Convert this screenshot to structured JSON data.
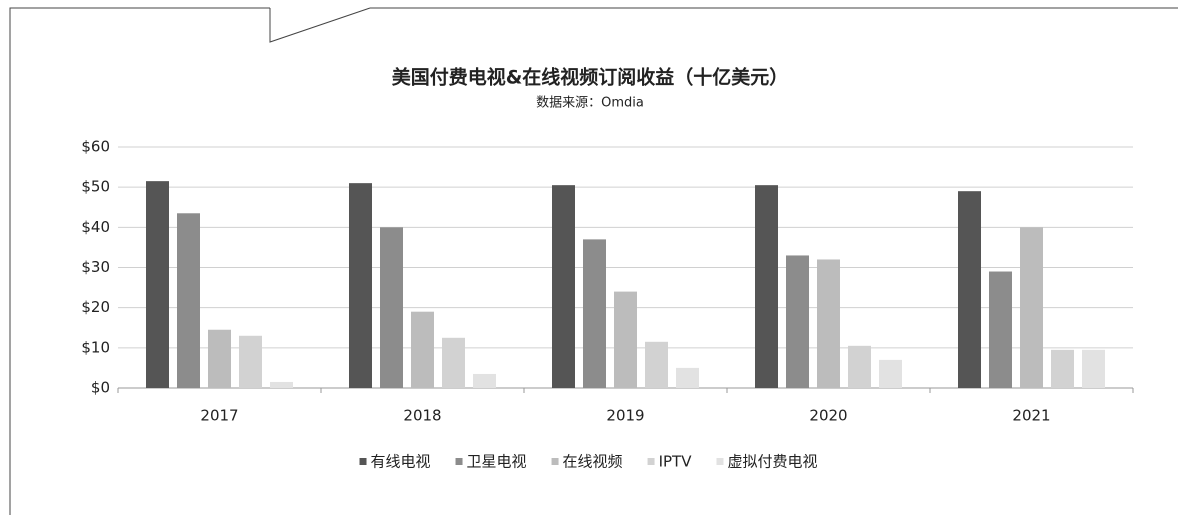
{
  "chart_data": {
    "type": "bar",
    "title": "美国付费电视&在线视频订阅收益（十亿美元）",
    "subtitle": "数据来源：Omdia",
    "categories": [
      "2017",
      "2018",
      "2019",
      "2020",
      "2021"
    ],
    "series": [
      {
        "name": "有线电视",
        "color": "#555555",
        "values": [
          51.5,
          51,
          50.5,
          50.5,
          49
        ]
      },
      {
        "name": "卫星电视",
        "color": "#8c8c8c",
        "values": [
          43.5,
          40,
          37,
          33,
          29
        ]
      },
      {
        "name": "在线视频",
        "color": "#bcbcbc",
        "values": [
          14.5,
          19,
          24,
          32,
          40
        ]
      },
      {
        "name": "IPTV",
        "color": "#d2d2d2",
        "values": [
          13,
          12.5,
          11.5,
          10.5,
          9.5
        ]
      },
      {
        "name": "虚拟付费电视",
        "color": "#e2e2e2",
        "values": [
          1.5,
          3.5,
          5,
          7,
          9.5
        ]
      }
    ],
    "ylim": [
      0,
      60
    ],
    "yticks": [
      {
        "value": 0,
        "label": "$0"
      },
      {
        "value": 10,
        "label": "$10"
      },
      {
        "value": 20,
        "label": "$20"
      },
      {
        "value": 30,
        "label": "$30"
      },
      {
        "value": 40,
        "label": "$40"
      },
      {
        "value": 50,
        "label": "$50"
      },
      {
        "value": 60,
        "label": "$60"
      }
    ],
    "grid": true,
    "legend": "bottom"
  }
}
